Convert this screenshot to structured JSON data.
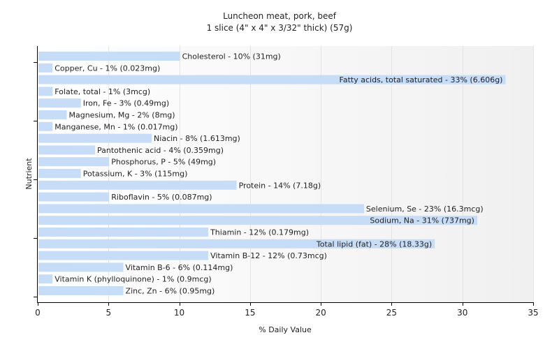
{
  "chart_data": {
    "type": "bar",
    "orientation": "horizontal",
    "title": "Luncheon meat, pork, beef",
    "subtitle": "1 slice (4\" x 4\" x 3/32\" thick) (57g)",
    "xlabel": "% Daily Value",
    "ylabel": "Nutrient",
    "xlim": [
      0,
      35
    ],
    "xticks": [
      0,
      5,
      10,
      15,
      20,
      25,
      30,
      35
    ],
    "grid": true,
    "bar_color": "#c6dcf7",
    "categories": [
      "Cholesterol",
      "Copper, Cu",
      "Fatty acids, total saturated",
      "Folate, total",
      "Iron, Fe",
      "Magnesium, Mg",
      "Manganese, Mn",
      "Niacin",
      "Pantothenic acid",
      "Phosphorus, P",
      "Potassium, K",
      "Protein",
      "Riboflavin",
      "Selenium, Se",
      "Sodium, Na",
      "Thiamin",
      "Total lipid (fat)",
      "Vitamin B-12",
      "Vitamin B-6",
      "Vitamin K (phylloquinone)",
      "Zinc, Zn"
    ],
    "values": [
      10,
      1,
      33,
      1,
      3,
      2,
      1,
      8,
      4,
      5,
      3,
      14,
      5,
      23,
      31,
      12,
      28,
      12,
      6,
      1,
      6
    ],
    "labels": [
      "Cholesterol - 10% (31mg)",
      "Copper, Cu - 1% (0.023mg)",
      "Fatty acids, total saturated - 33% (6.606g)",
      "Folate, total - 1% (3mcg)",
      "Iron, Fe - 3% (0.49mg)",
      "Magnesium, Mg - 2% (8mg)",
      "Manganese, Mn - 1% (0.017mg)",
      "Niacin - 8% (1.613mg)",
      "Pantothenic acid - 4% (0.359mg)",
      "Phosphorus, P - 5% (49mg)",
      "Potassium, K - 3% (115mg)",
      "Protein - 14% (7.18g)",
      "Riboflavin - 5% (0.087mg)",
      "Selenium, Se - 23% (16.3mcg)",
      "Sodium, Na - 31% (737mg)",
      "Thiamin - 12% (0.179mg)",
      "Total lipid (fat) - 28% (18.33g)",
      "Vitamin B-12 - 12% (0.73mcg)",
      "Vitamin B-6 - 6% (0.114mg)",
      "Vitamin K (phylloquinone) - 1% (0.9mcg)",
      "Zinc, Zn - 6% (0.95mg)"
    ]
  }
}
